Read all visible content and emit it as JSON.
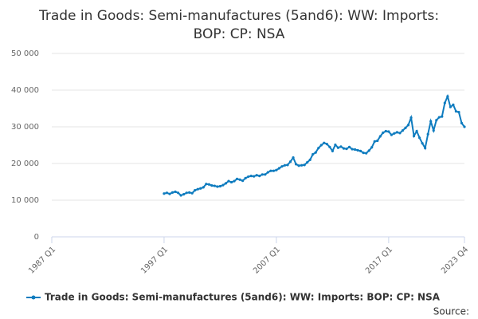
{
  "chart_data": {
    "type": "line",
    "title": "Trade in Goods: Semi-manufactures (5and6): WW: Imports: BOP: CP: NSA",
    "source": "Source:",
    "categories": [
      "1987 Q1",
      null,
      null,
      null,
      null,
      null,
      null,
      null,
      null,
      null,
      null,
      null,
      null,
      null,
      null,
      null,
      null,
      null,
      null,
      null,
      null,
      null,
      null,
      null,
      null,
      null,
      null,
      null,
      null,
      null,
      null,
      null,
      null,
      null,
      null,
      null,
      null,
      null,
      null,
      null,
      "1997 Q1",
      null,
      null,
      null,
      null,
      null,
      null,
      null,
      null,
      null,
      null,
      null,
      null,
      null,
      null,
      null,
      null,
      null,
      null,
      null,
      null,
      null,
      null,
      null,
      null,
      null,
      null,
      null,
      null,
      null,
      null,
      null,
      null,
      null,
      null,
      null,
      null,
      null,
      null,
      null,
      "2007 Q1",
      null,
      null,
      null,
      null,
      null,
      null,
      null,
      null,
      null,
      null,
      null,
      null,
      null,
      null,
      null,
      null,
      null,
      null,
      null,
      null,
      null,
      null,
      null,
      null,
      null,
      null,
      null,
      null,
      null,
      null,
      null,
      null,
      null,
      null,
      null,
      null,
      null,
      null,
      null,
      "2017 Q1",
      null,
      null,
      null,
      null,
      null,
      null,
      null,
      null,
      null,
      null,
      null,
      null,
      null,
      null,
      null,
      null,
      null,
      null,
      null,
      null,
      null,
      null,
      null,
      null,
      null,
      null,
      "2023 Q4"
    ],
    "series": [
      {
        "name": "Trade in Goods: Semi-manufactures (5and6): WW: Imports: BOP: CP: NSA",
        "color": "#0f7cbf",
        "values": [
          null,
          null,
          null,
          null,
          null,
          null,
          null,
          null,
          null,
          null,
          null,
          null,
          null,
          null,
          null,
          null,
          null,
          null,
          null,
          null,
          null,
          null,
          null,
          null,
          null,
          null,
          null,
          null,
          null,
          null,
          null,
          null,
          null,
          null,
          null,
          null,
          null,
          null,
          null,
          null,
          11800,
          12000,
          11700,
          12100,
          12300,
          12000,
          11300,
          11600,
          12000,
          12100,
          11900,
          12700,
          13000,
          13200,
          13500,
          14400,
          14300,
          14000,
          13900,
          13700,
          13800,
          14100,
          14600,
          15200,
          14900,
          15200,
          15800,
          15600,
          15300,
          16000,
          16400,
          16600,
          16500,
          16800,
          16600,
          17000,
          17000,
          17600,
          18000,
          18000,
          18200,
          18700,
          19200,
          19500,
          19600,
          20500,
          21600,
          19800,
          19400,
          19500,
          19600,
          20300,
          21000,
          22500,
          23000,
          24200,
          25000,
          25600,
          25300,
          24500,
          23400,
          25100,
          24300,
          24600,
          24100,
          24000,
          24500,
          23900,
          23800,
          23600,
          23400,
          22900,
          22800,
          23500,
          24400,
          26000,
          26200,
          27400,
          28400,
          28800,
          28700,
          27800,
          28200,
          28500,
          28300,
          29000,
          29700,
          30500,
          32500,
          27500,
          28800,
          27000,
          25500,
          24200,
          28000,
          31500,
          29000,
          31800,
          32600,
          32800,
          36500,
          38300,
          35400,
          36000,
          34200,
          34000,
          31000,
          30000
        ]
      }
    ],
    "ylim": [
      0,
      50000
    ],
    "yticks": [
      0,
      {
        "value": 10000,
        "label": "10 000"
      },
      {
        "value": 20000,
        "label": "20 000"
      },
      {
        "value": 30000,
        "label": "30 000"
      },
      {
        "value": 40000,
        "label": "40 000"
      },
      {
        "value": 50000,
        "label": "50 000"
      }
    ],
    "grid": true
  }
}
